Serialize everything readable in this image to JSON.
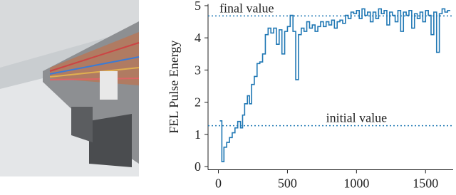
{
  "chart_data": {
    "type": "line",
    "drawstyle": "steps-post",
    "ylabel": "FEL Pulse Energy",
    "x": [
      10,
      25,
      40,
      60,
      80,
      100,
      120,
      140,
      160,
      175,
      190,
      210,
      225,
      240,
      260,
      280,
      300,
      320,
      340,
      360,
      380,
      400,
      420,
      440,
      460,
      480,
      500,
      520,
      540,
      560,
      580,
      600,
      620,
      640,
      660,
      680,
      700,
      720,
      740,
      760,
      780,
      800,
      820,
      840,
      860,
      880,
      900,
      920,
      940,
      960,
      980,
      1000,
      1020,
      1040,
      1060,
      1080,
      1100,
      1120,
      1140,
      1160,
      1180,
      1200,
      1220,
      1240,
      1260,
      1280,
      1300,
      1320,
      1340,
      1360,
      1380,
      1400,
      1420,
      1440,
      1460,
      1480,
      1500,
      1520,
      1540,
      1560,
      1580,
      1600,
      1620,
      1640,
      1660
    ],
    "values": [
      1.42,
      0.15,
      0.6,
      0.75,
      0.9,
      1.05,
      1.2,
      1.4,
      1.2,
      1.6,
      1.95,
      2.2,
      1.95,
      2.55,
      2.8,
      3.2,
      3.25,
      3.5,
      4.1,
      4.3,
      4.15,
      4.3,
      3.8,
      4.25,
      3.5,
      4.2,
      4.35,
      4.7,
      4.2,
      2.7,
      4.1,
      4.3,
      4.2,
      4.5,
      4.3,
      4.4,
      4.2,
      4.35,
      4.5,
      4.35,
      4.5,
      4.4,
      4.55,
      4.3,
      4.5,
      4.55,
      4.45,
      4.7,
      4.6,
      4.8,
      4.75,
      4.85,
      4.6,
      4.9,
      4.7,
      4.8,
      4.5,
      4.8,
      4.6,
      4.9,
      4.75,
      4.85,
      4.4,
      4.8,
      4.7,
      4.5,
      4.85,
      4.2,
      4.8,
      4.7,
      4.85,
      4.3,
      4.75,
      4.6,
      4.8,
      4.5,
      4.85,
      4.7,
      4.1,
      4.8,
      3.55,
      4.75,
      4.9,
      4.8,
      4.85
    ],
    "color": "#1f77b4",
    "reference_lines": [
      {
        "value": 4.68,
        "label": "final value"
      },
      {
        "value": 1.27,
        "label": "initial value"
      }
    ],
    "xlim": [
      -75,
      1700
    ],
    "ylim": [
      -0.1,
      5.05
    ],
    "xticks": [
      0,
      500,
      1000,
      1500
    ],
    "yticks": [
      0,
      1,
      2,
      3,
      4,
      5
    ]
  }
}
